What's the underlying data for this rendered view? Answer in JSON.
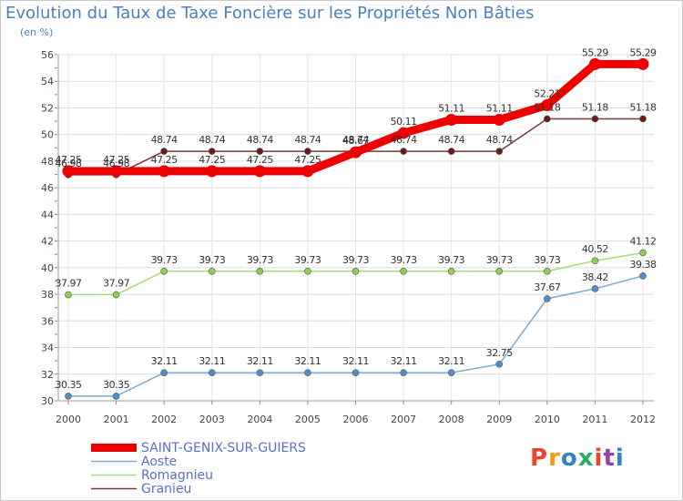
{
  "chart_data": {
    "type": "line",
    "title": "Evolution du Taux de Taxe Foncière sur les Propriétés Non Bâties",
    "ylabel": "(en %)",
    "xlabel": "",
    "categories": [
      "2000",
      "2001",
      "2002",
      "2003",
      "2004",
      "2005",
      "2006",
      "2007",
      "2008",
      "2009",
      "2010",
      "2011",
      "2012"
    ],
    "ylim": [
      30,
      56
    ],
    "yticks": [
      30,
      32,
      34,
      36,
      38,
      40,
      42,
      44,
      46,
      48,
      50,
      52,
      54,
      56
    ],
    "grid": true,
    "series": [
      {
        "name": "Granieu",
        "color": "#6b1a1a",
        "lineColor": "#7a3838",
        "values": [
          46.98,
          46.98,
          48.74,
          48.74,
          48.74,
          48.74,
          48.74,
          48.74,
          48.74,
          48.74,
          51.18,
          51.18,
          51.18
        ],
        "labels": [
          "46.98",
          "46.98",
          "48.74",
          "48.74",
          "48.74",
          "48.74",
          "48.74",
          "48.74",
          "48.74",
          "48.74",
          "51.18",
          "51.18",
          "51.18"
        ]
      },
      {
        "name": "Romagnieu",
        "color": "#8fd14f",
        "lineColor": "#a6db7a",
        "values": [
          37.97,
          37.97,
          39.73,
          39.73,
          39.73,
          39.73,
          39.73,
          39.73,
          39.73,
          39.73,
          39.73,
          40.52,
          41.12
        ],
        "labels": [
          "37.97",
          "37.97",
          "39.73",
          "39.73",
          "39.73",
          "39.73",
          "39.73",
          "39.73",
          "39.73",
          "39.73",
          "39.73",
          "40.52",
          "41.12"
        ]
      },
      {
        "name": "Aoste",
        "color": "#4f8fc9",
        "lineColor": "#7aa9d4",
        "values": [
          30.35,
          30.35,
          32.11,
          32.11,
          32.11,
          32.11,
          32.11,
          32.11,
          32.11,
          32.75,
          37.67,
          38.42,
          39.38
        ],
        "labels": [
          "30.35",
          "30.35",
          "32.11",
          "32.11",
          "32.11",
          "32.11",
          "32.11",
          "32.11",
          "32.11",
          "32.75",
          "37.67",
          "38.42",
          "39.38"
        ]
      },
      {
        "name": "SAINT-GENIX-SUR-GUIERS",
        "color": "#ee0000",
        "lineColor": "#ee0000",
        "values": [
          47.25,
          47.25,
          47.25,
          47.25,
          47.25,
          47.25,
          48.67,
          50.11,
          51.11,
          51.11,
          52.21,
          55.29,
          55.29
        ],
        "labels": [
          "47.25",
          "47.25",
          "47.25",
          "47.25",
          "47.25",
          "47.25",
          "48.67",
          "50.11",
          "51.11",
          "51.11",
          "52.21",
          "55.29",
          "55.29"
        ]
      }
    ],
    "legend": [
      "SAINT-GENIX-SUR-GUIERS",
      "Aoste",
      "Romagnieu",
      "Granieu"
    ]
  },
  "logo": {
    "text": "Proxiti",
    "letters": [
      "P",
      "r",
      "o",
      "x",
      "i",
      "t",
      "i"
    ],
    "colors": [
      "#e8442e",
      "#f39c12",
      "#2e86c1",
      "#27ae60",
      "#e8442e",
      "#8e44ad",
      "#2e86c1"
    ]
  }
}
